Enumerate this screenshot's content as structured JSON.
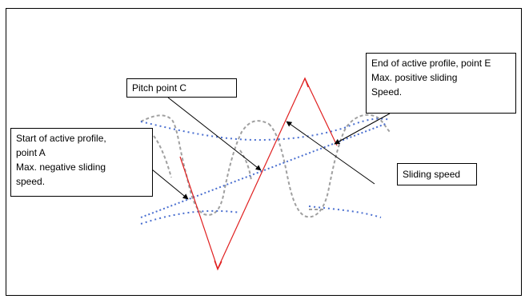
{
  "diagram": {
    "labels": {
      "start": {
        "lines": [
          "Start of active profile,",
          "point A",
          "Max. negative sliding",
          "speed."
        ]
      },
      "pitch": {
        "lines": [
          "Pitch point C"
        ]
      },
      "end": {
        "lines": [
          "End of active profile, point E",
          "Max. positive sliding",
          "Speed."
        ]
      },
      "sliding": {
        "lines": [
          "Sliding speed"
        ]
      }
    },
    "colors": {
      "frame": "#000000",
      "sliding_speed_curve": "#e02020",
      "line_of_action": "#4a6fd0",
      "gear_profile": "#a0a0a0",
      "leaders": "#000000"
    }
  }
}
